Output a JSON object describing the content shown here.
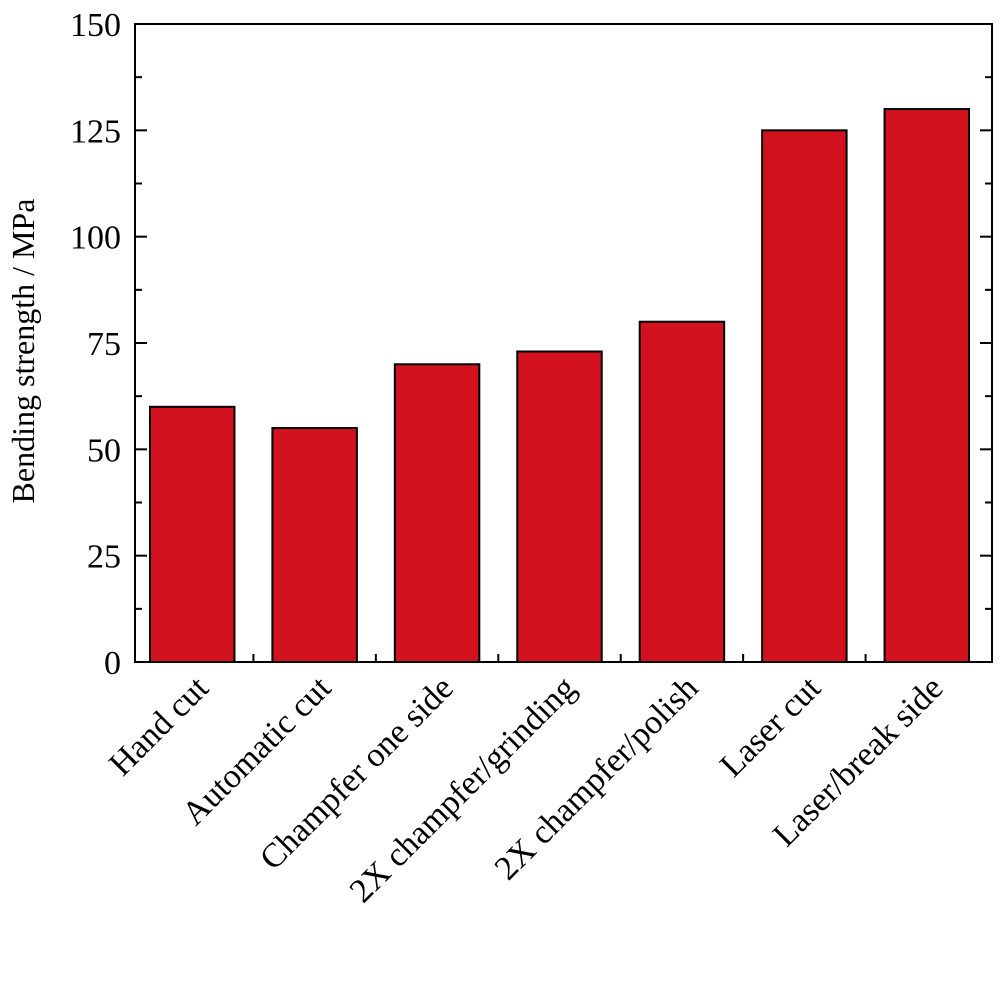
{
  "chart_data": {
    "type": "bar",
    "categories": [
      "Hand cut",
      "Automatic cut",
      "Champfer one side",
      "2X champfer/grinding",
      "2X champfer/polish",
      "Laser cut",
      "Laser/break side"
    ],
    "values": [
      60,
      55,
      70,
      73,
      80,
      125,
      130
    ],
    "title": "",
    "xlabel": "",
    "ylabel": "Bending strength / MPa",
    "ylim": [
      0,
      150
    ],
    "yticks": [
      "0",
      "25",
      "50",
      "75",
      "100",
      "125",
      "150"
    ],
    "ytick_values": [
      0,
      25,
      50,
      75,
      100,
      125,
      150
    ],
    "bar_color": "#d2121f",
    "grid": false
  }
}
